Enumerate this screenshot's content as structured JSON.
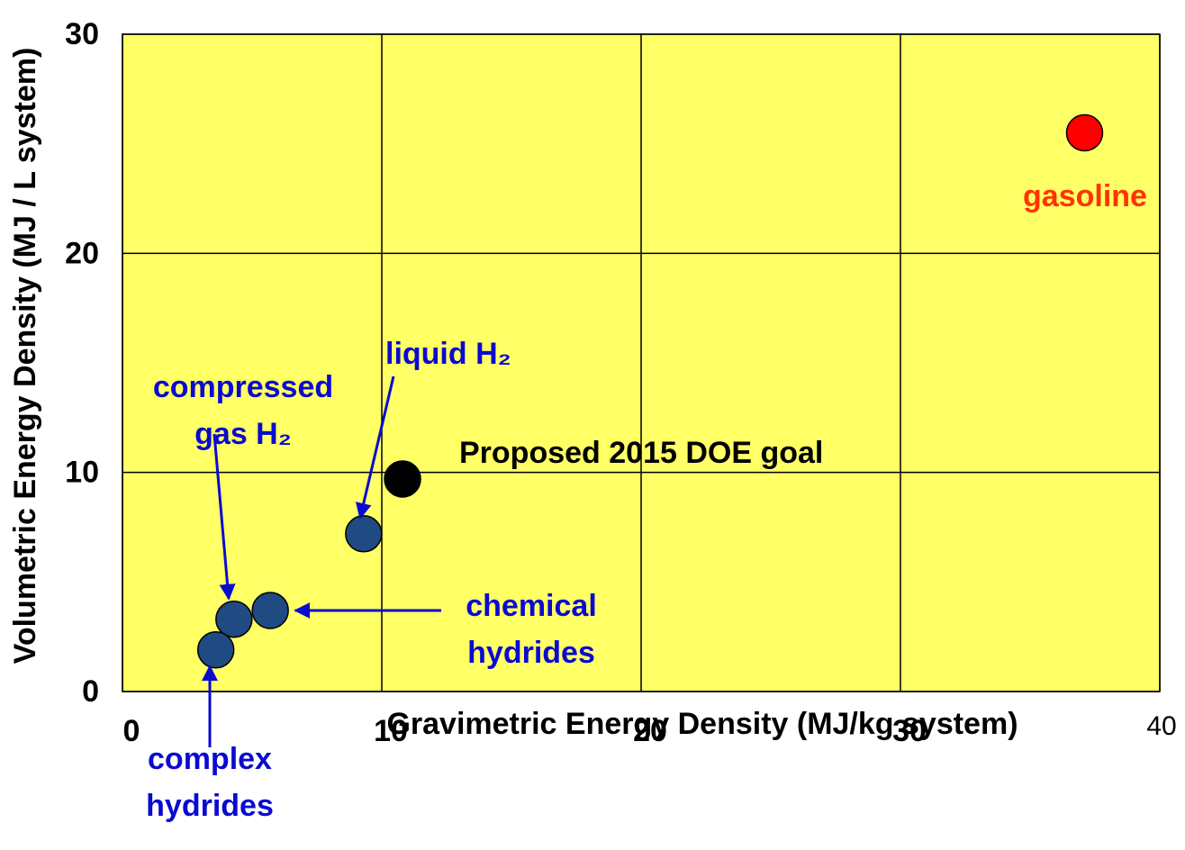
{
  "chart_data": {
    "type": "scatter",
    "xlabel": "Gravimetric Energy Density (MJ/kg system)",
    "ylabel": "Volumetric Energy Density (MJ / L system)",
    "x": [
      37.1,
      10.8,
      9.3,
      5.7,
      4.3,
      3.6
    ],
    "y": [
      25.5,
      9.7,
      7.2,
      3.7,
      3.3,
      1.9
    ],
    "colors": [
      "#ff0000",
      "#000000",
      "#1f4a82",
      "#1f4a82",
      "#1f4a82",
      "#1f4a82"
    ],
    "annotations": [
      [
        "gasoline"
      ],
      [
        "Proposed 2015 DOE goal"
      ],
      [
        "liquid H₂"
      ],
      [
        "chemical",
        "hydrides"
      ],
      [
        "compressed",
        "gas H₂"
      ],
      [
        "complex",
        "hydrides"
      ]
    ],
    "xlim": [
      0,
      40
    ],
    "xticks": [
      0,
      10,
      20,
      30,
      40
    ],
    "ylim": [
      0,
      30
    ],
    "yticks": [
      0,
      10,
      20,
      30
    ],
    "grid": true,
    "background": "#ffff66"
  }
}
